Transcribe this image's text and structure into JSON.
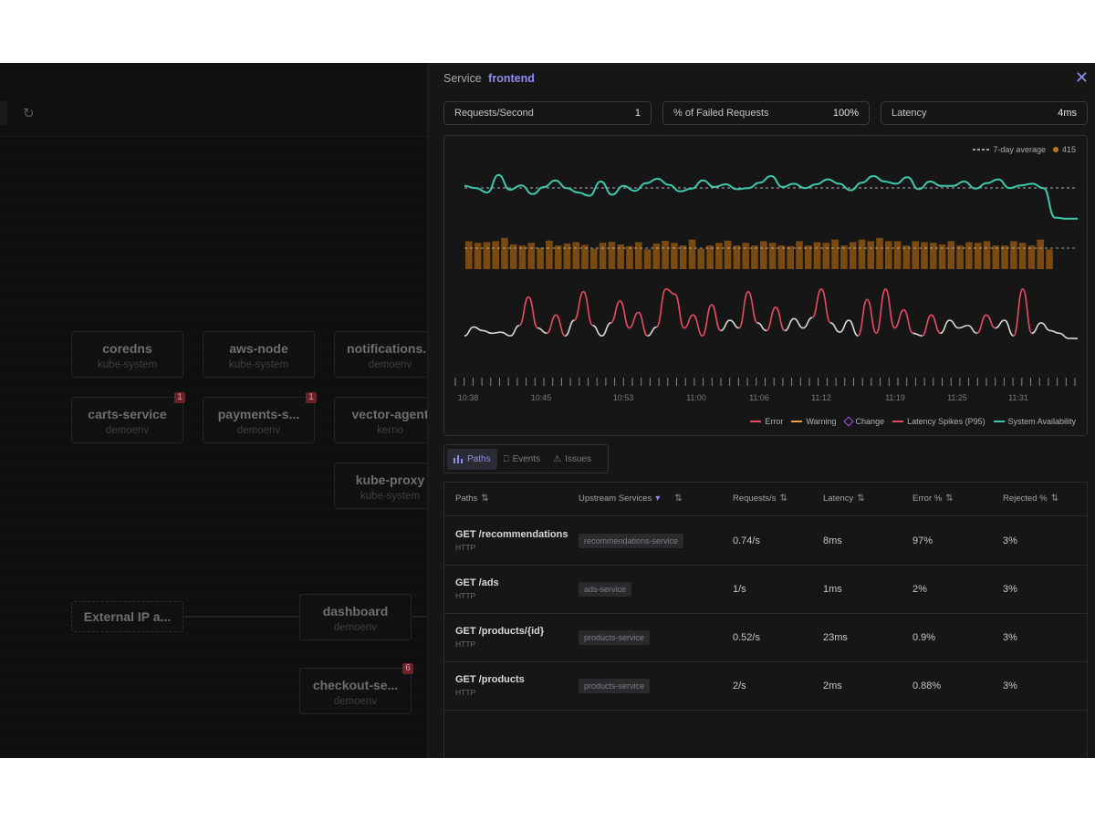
{
  "map": {
    "nodes": [
      {
        "name": "coredns",
        "ns": "kube-system",
        "badge": ""
      },
      {
        "name": "aws-node",
        "ns": "kube-system",
        "badge": ""
      },
      {
        "name": "notifications...",
        "ns": "demoenv",
        "badge": ""
      },
      {
        "name": "carts-service",
        "ns": "demoenv",
        "badge": "1"
      },
      {
        "name": "payments-s...",
        "ns": "demoenv",
        "badge": "1"
      },
      {
        "name": "vector-agent",
        "ns": "kerno",
        "badge": ""
      },
      {
        "name": "kube-proxy",
        "ns": "kube-system",
        "badge": ""
      },
      {
        "name": "External IP a...",
        "ns": "",
        "badge": ""
      },
      {
        "name": "dashboard",
        "ns": "demoenv",
        "badge": ""
      },
      {
        "name": "checkout-se...",
        "ns": "demoenv",
        "badge": "6"
      }
    ]
  },
  "panel": {
    "title_prefix": "Service",
    "service_name": "frontend",
    "metrics": [
      {
        "label": "Requests/Second",
        "value": "1"
      },
      {
        "label": "% of Failed Requests",
        "value": "100%"
      },
      {
        "label": "Latency",
        "value": "4ms"
      }
    ],
    "chart_legend_avg": "7-day average",
    "chart_legend_count": "415",
    "tabs": [
      {
        "label": "Paths",
        "icon": "bar-chart-icon",
        "active": true
      },
      {
        "label": "Events",
        "icon": "trophy-icon",
        "active": false
      },
      {
        "label": "Issues",
        "icon": "alert-icon",
        "active": false
      }
    ],
    "table": {
      "headers": [
        "Paths",
        "Upstream Services",
        "Requests/s",
        "Latency",
        "Error %",
        "Rejected %"
      ],
      "rows": [
        {
          "path": "GET /recommendations",
          "proto": "HTTP",
          "upstream": "recommendations-service",
          "rps": "0.74/s",
          "latency": "8ms",
          "error": "97%",
          "rejected": "3%"
        },
        {
          "path": "GET /ads",
          "proto": "HTTP",
          "upstream": "ads-service",
          "rps": "1/s",
          "latency": "1ms",
          "error": "2%",
          "rejected": "3%"
        },
        {
          "path": "GET /products/{id}",
          "proto": "HTTP",
          "upstream": "products-service",
          "rps": "0.52/s",
          "latency": "23ms",
          "error": "0.9%",
          "rejected": "3%"
        },
        {
          "path": "GET /products",
          "proto": "HTTP",
          "upstream": "products-service",
          "rps": "2/s",
          "latency": "2ms",
          "error": "0.88%",
          "rejected": "3%"
        }
      ]
    }
  },
  "chart_data": {
    "type": "line",
    "x_ticks": [
      "10:38",
      "10:45",
      "10:53",
      "11:00",
      "11:06",
      "11:12",
      "11:19",
      "11:25",
      "11:31"
    ],
    "legend": [
      "Error",
      "Warning",
      "Change",
      "Latency Spikes (P95)",
      "System Availability"
    ],
    "colors": {
      "availability": "#3fc8ab",
      "bars": "#7a4a10",
      "error": "#e84a63",
      "neutral": "#d8d8d8",
      "warning": "#f0a04b",
      "change": "#9b59f6",
      "grid": "#8a8a8a"
    },
    "series": [
      {
        "name": "System Availability",
        "values": [
          0.62,
          0.58,
          0.5,
          0.82,
          0.55,
          0.63,
          0.47,
          0.6,
          0.72,
          0.58,
          0.5,
          0.44,
          0.7,
          0.46,
          0.62,
          0.53,
          0.67,
          0.75,
          0.64,
          0.52,
          0.57,
          0.72,
          0.6,
          0.65,
          0.56,
          0.58,
          0.68,
          0.8,
          0.6,
          0.66,
          0.58,
          0.65,
          0.74,
          0.66,
          0.54,
          0.68,
          0.8,
          0.7,
          0.66,
          0.78,
          0.56,
          0.7,
          0.62,
          0.62,
          0.7,
          0.57,
          0.67,
          0.74,
          0.58,
          0.63,
          0.66,
          0.58,
          0.04,
          0.02,
          0.02
        ]
      },
      {
        "name": "bars",
        "values": [
          0.85,
          0.8,
          0.82,
          0.85,
          0.95,
          0.75,
          0.72,
          0.8,
          0.65,
          0.87,
          0.72,
          0.78,
          0.82,
          0.74,
          0.62,
          0.8,
          0.83,
          0.75,
          0.7,
          0.82,
          0.6,
          0.78,
          0.86,
          0.8,
          0.72,
          0.9,
          0.62,
          0.72,
          0.8,
          0.87,
          0.72,
          0.8,
          0.72,
          0.85,
          0.8,
          0.72,
          0.7,
          0.85,
          0.72,
          0.82,
          0.8,
          0.9,
          0.72,
          0.82,
          0.9,
          0.85,
          0.95,
          0.85,
          0.85,
          0.72,
          0.85,
          0.82,
          0.8,
          0.75,
          0.85,
          0.72,
          0.82,
          0.8,
          0.85,
          0.72,
          0.72,
          0.85,
          0.8,
          0.72,
          0.9,
          0.6
        ]
      },
      {
        "name": "Latency Spikes (P95)",
        "values": [
          0.05,
          0.22,
          0.15,
          0.1,
          0.12,
          0.05,
          0.25,
          0.8,
          0.2,
          0.1,
          0.45,
          0.05,
          0.35,
          0.9,
          0.25,
          0.05,
          0.3,
          0.72,
          0.2,
          0.5,
          0.05,
          0.22,
          0.95,
          0.85,
          0.2,
          0.45,
          0.05,
          0.65,
          0.15,
          0.35,
          0.2,
          0.9,
          0.3,
          0.15,
          0.6,
          0.15,
          0.38,
          0.2,
          0.4,
          0.95,
          0.3,
          0.12,
          0.35,
          0.05,
          0.75,
          0.1,
          0.95,
          0.2,
          0.55,
          0.1,
          0.05,
          0.45,
          0.1,
          0.35,
          0.2,
          0.25,
          0.1,
          0.45,
          0.2,
          0.35,
          0.05,
          0.95,
          0.1,
          0.3,
          0.15,
          0.1,
          0.0,
          0.0
        ]
      }
    ]
  }
}
